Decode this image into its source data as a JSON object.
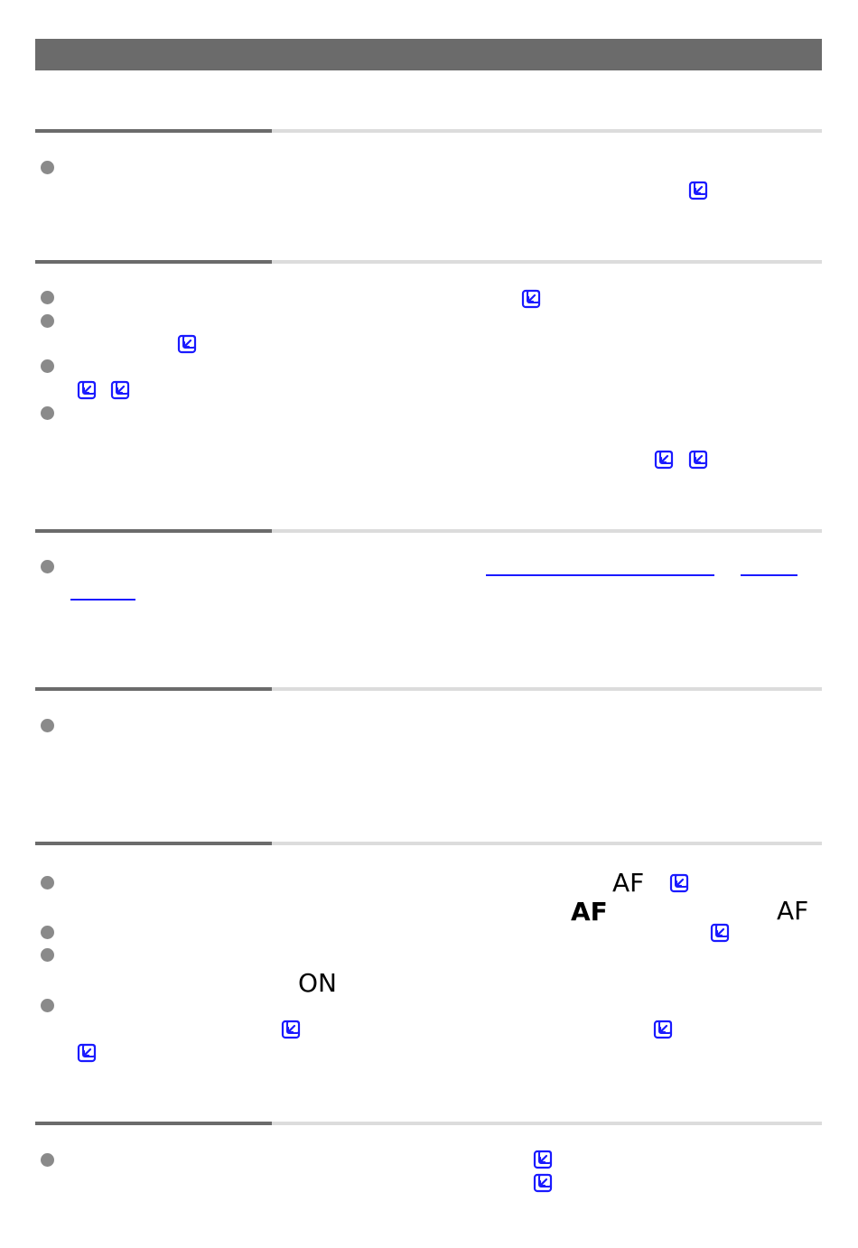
{
  "colors": {
    "header_bar": "#6b6b6b",
    "rule_light": "#dcdcdc",
    "bullet": "#8a8a8a",
    "link": "#1a1aff"
  },
  "icons": {
    "reference": "page-reference-icon",
    "bullet": "bullet-dot-icon"
  },
  "labels": {
    "af_light": "AF",
    "af_bold": "AF",
    "af_right": "AF",
    "on": "ON"
  }
}
